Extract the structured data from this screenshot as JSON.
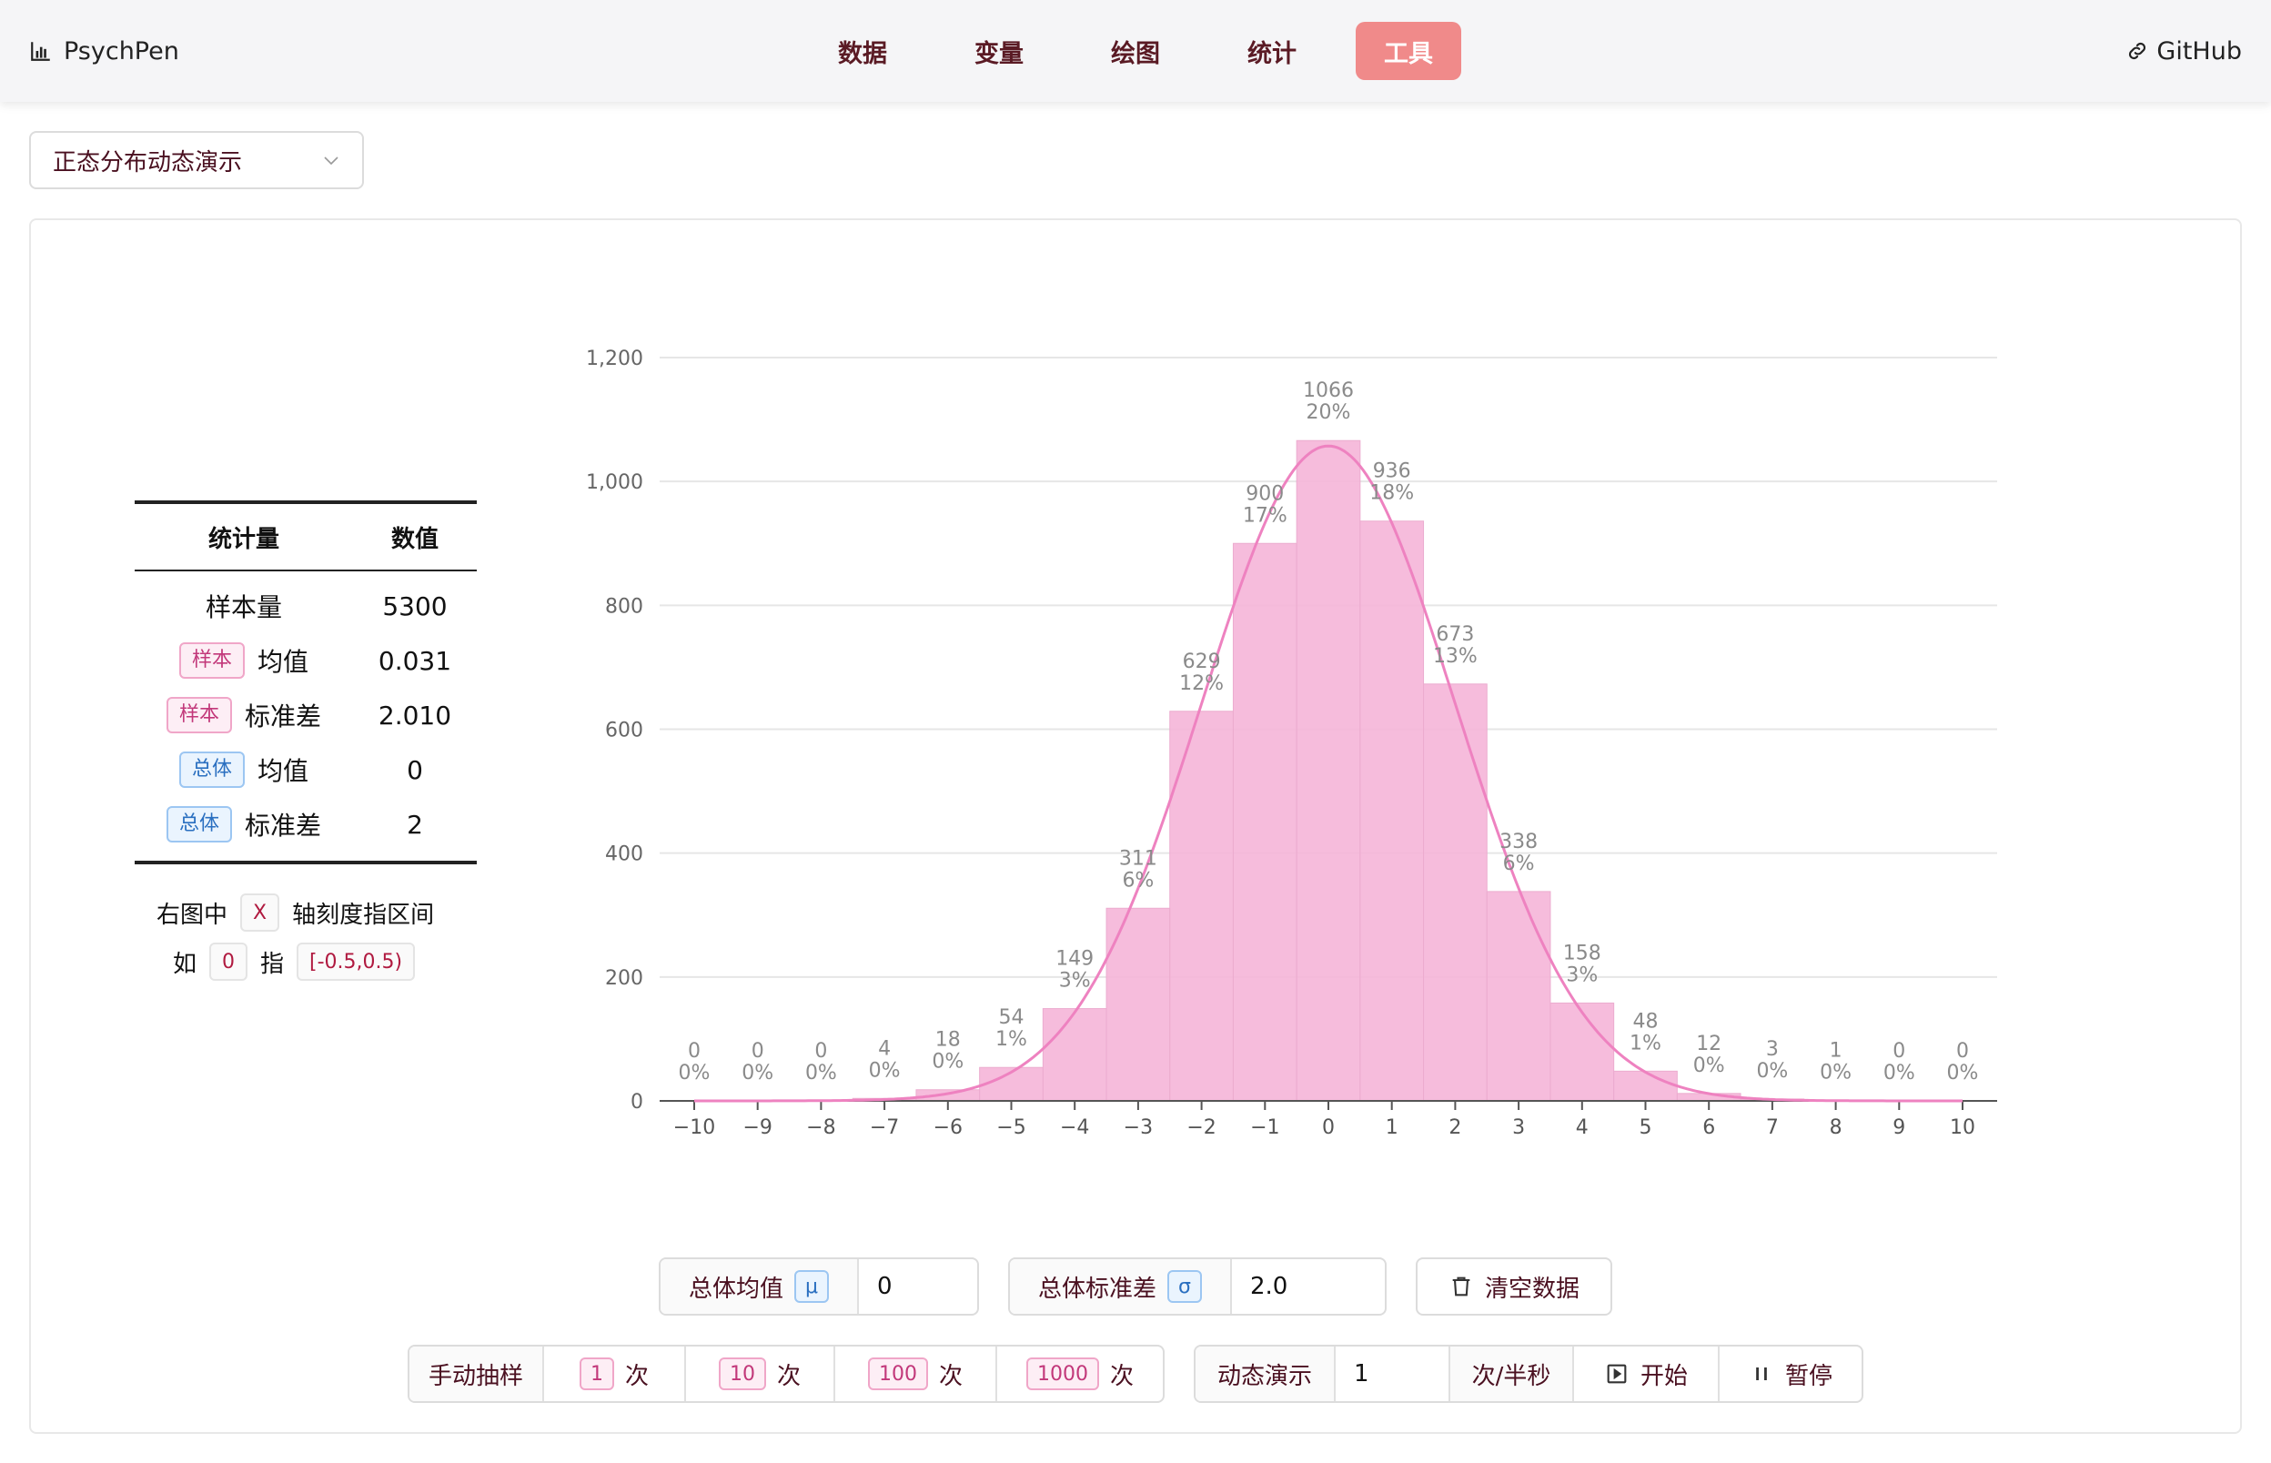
{
  "header": {
    "brand": "PsychPen",
    "brand_icon": "bar-chart-icon",
    "nav": [
      {
        "label": "数据",
        "active": false
      },
      {
        "label": "变量",
        "active": false
      },
      {
        "label": "绘图",
        "active": false
      },
      {
        "label": "统计",
        "active": false
      },
      {
        "label": "工具",
        "active": true
      }
    ],
    "github": "GitHub",
    "accent_color": "#f08a8a"
  },
  "tool_select": {
    "value": "正态分布动态演示"
  },
  "stats_table": {
    "headers": [
      "统计量",
      "数值"
    ],
    "rows": [
      {
        "tag": "",
        "label": "样本量",
        "value": "5300"
      },
      {
        "tag": "样本",
        "tag_color": "pink",
        "label": "均值",
        "value": "0.031"
      },
      {
        "tag": "样本",
        "tag_color": "pink",
        "label": "标准差",
        "value": "2.010"
      },
      {
        "tag": "总体",
        "tag_color": "blue",
        "label": "均值",
        "value": "0"
      },
      {
        "tag": "总体",
        "tag_color": "blue",
        "label": "标准差",
        "value": "2"
      }
    ]
  },
  "note": {
    "line1_pre": "右图中",
    "line1_key": "X",
    "line1_post": "轴刻度指区间",
    "line2_pre": "如",
    "line2_key": "0",
    "line2_mid": "指",
    "line2_range": "[-0.5,0.5)"
  },
  "chart_data": {
    "type": "bar",
    "categories": [
      "−10",
      "−9",
      "−8",
      "−7",
      "−6",
      "−5",
      "−4",
      "−3",
      "−2",
      "−1",
      "0",
      "1",
      "2",
      "3",
      "4",
      "5",
      "6",
      "7",
      "8",
      "9",
      "10"
    ],
    "values": [
      0,
      0,
      0,
      4,
      18,
      54,
      149,
      311,
      629,
      900,
      1066,
      936,
      673,
      338,
      158,
      48,
      12,
      3,
      1,
      0,
      0
    ],
    "percent_labels": [
      "0%",
      "0%",
      "0%",
      "0%",
      "0%",
      "1%",
      "3%",
      "6%",
      "12%",
      "17%",
      "20%",
      "18%",
      "13%",
      "6%",
      "3%",
      "1%",
      "0%",
      "0%",
      "0%",
      "0%",
      "0%"
    ],
    "density_curve": {
      "mean": 0,
      "sd": 2,
      "n": 5300
    },
    "yticks": [
      "0",
      "200",
      "400",
      "600",
      "800",
      "1,000",
      "1,200"
    ],
    "ylim": [
      0,
      1200
    ],
    "grid": true,
    "bar_color": "#f5b5d8",
    "curve_color": "#ee82c0"
  },
  "controls": {
    "mean_label": "总体均值",
    "mean_symbol": "μ",
    "mean_value": "0",
    "sd_label": "总体标准差",
    "sd_symbol": "σ",
    "sd_value": "2.0",
    "clear_label": "清空数据",
    "manual_label": "手动抽样",
    "sample_options": [
      {
        "n": "1",
        "unit": "次"
      },
      {
        "n": "10",
        "unit": "次"
      },
      {
        "n": "100",
        "unit": "次"
      },
      {
        "n": "1000",
        "unit": "次"
      }
    ],
    "demo_label": "动态演示",
    "demo_value": "1",
    "demo_unit": "次/半秒",
    "start_label": "开始",
    "pause_label": "暂停"
  }
}
